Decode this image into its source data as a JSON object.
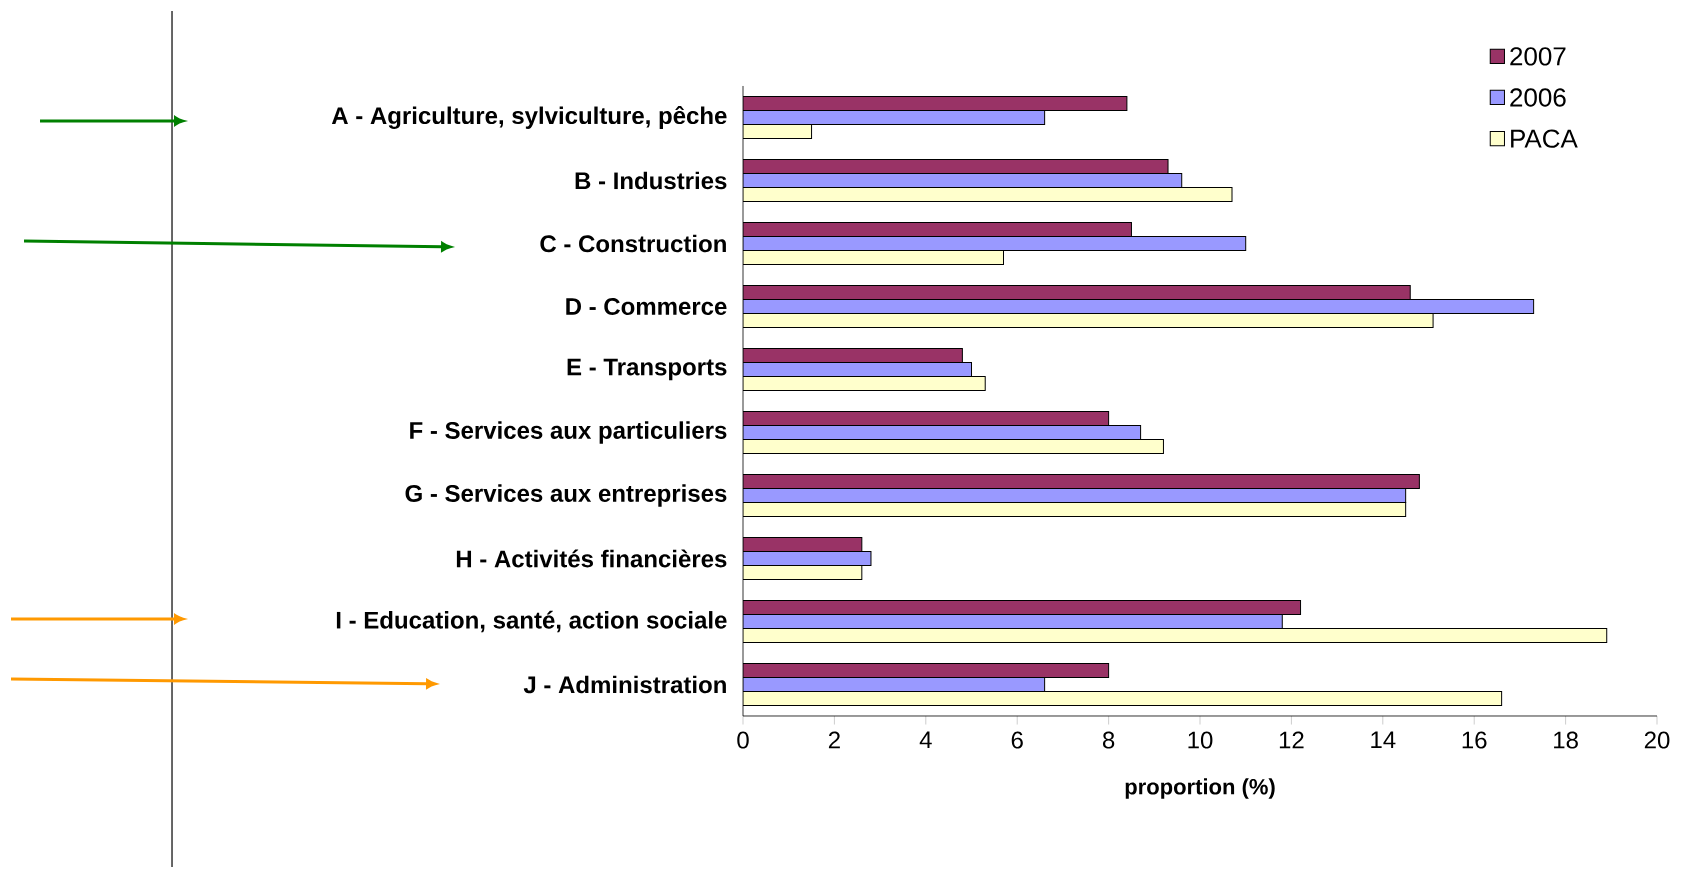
{
  "chart_data": {
    "type": "bar",
    "orientation": "horizontal",
    "categories": [
      "A - Agriculture, sylviculture, pêche",
      "B - Industries",
      "C - Construction",
      "D - Commerce",
      "E - Transports",
      "F - Services aux particuliers",
      "G - Services aux entreprises",
      "H - Activités financières",
      "I - Education, santé, action sociale",
      "J - Administration"
    ],
    "series": [
      {
        "name": "2007",
        "color": "#993366",
        "values": [
          8.4,
          9.3,
          8.5,
          14.6,
          4.8,
          8.0,
          14.8,
          2.6,
          12.2,
          8.0
        ]
      },
      {
        "name": "2006",
        "color": "#9999ff",
        "values": [
          6.6,
          9.6,
          11.0,
          17.3,
          5.0,
          8.7,
          14.5,
          2.8,
          11.8,
          6.6
        ]
      },
      {
        "name": "PACA",
        "color": "#ffffcc",
        "values": [
          1.5,
          10.7,
          5.7,
          15.1,
          5.3,
          9.2,
          14.5,
          2.6,
          18.9,
          16.6
        ]
      }
    ],
    "xlabel": "proportion (%)",
    "xlim": [
      0,
      20
    ],
    "xticks": [
      0,
      2,
      4,
      6,
      8,
      10,
      12,
      14,
      16,
      18,
      20
    ],
    "legend": "top right"
  }
}
